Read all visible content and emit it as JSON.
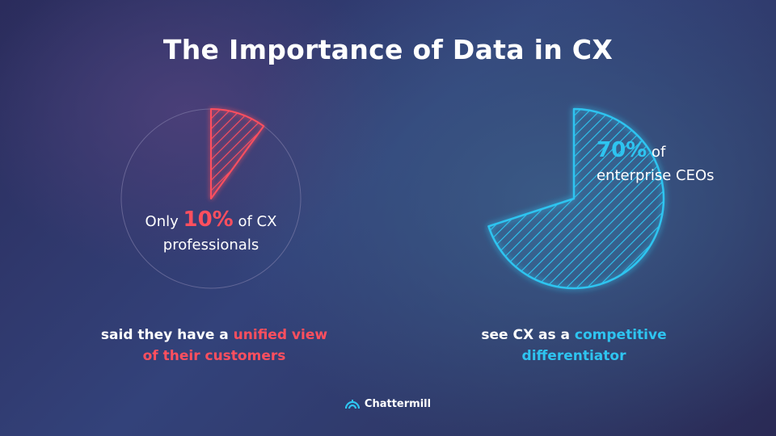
{
  "title": "The Importance of Data in CX",
  "chart_data": [
    {
      "type": "pie",
      "value": 10,
      "unit": "%",
      "color": "#ff4f5e",
      "label_prefix": "Only",
      "label_value": "10%",
      "label_suffix_1": "of CX",
      "label_suffix_2": "professionals",
      "caption_plain": "said they have a",
      "caption_highlight": "unified view",
      "caption_line2": "of their customers"
    },
    {
      "type": "pie",
      "value": 70,
      "unit": "%",
      "color": "#2ec4f0",
      "label_value": "70%",
      "label_suffix_1": "of",
      "label_suffix_2": "enterprise CEOs",
      "caption_plain": "see CX as a",
      "caption_highlight": "competitive",
      "caption_line2": "differentiator"
    }
  ],
  "brand": {
    "name": "Chattermill",
    "icon": "chattermill-logo-icon"
  }
}
